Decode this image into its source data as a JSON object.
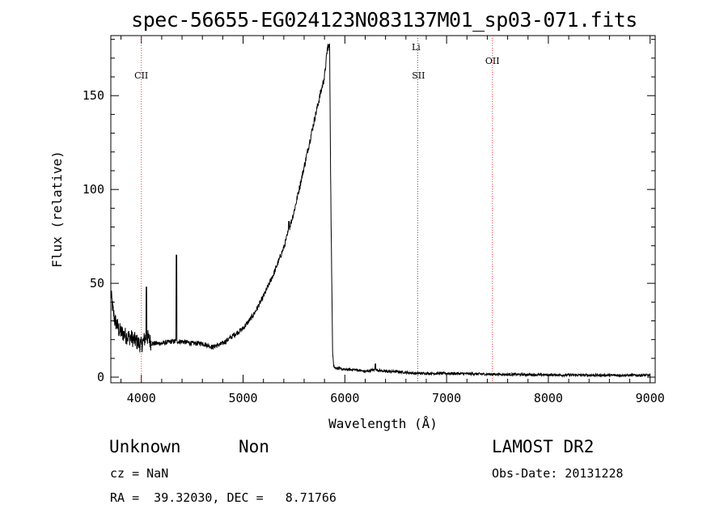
{
  "chart_data": {
    "type": "line",
    "title": "spec-56655-EG024123N083137M01_sp03-071.fits",
    "xlabel": "Wavelength (Å)",
    "ylabel": "Flux (relative)",
    "xlim": [
      3700,
      9050
    ],
    "ylim": [
      -3,
      182
    ],
    "x_ticks": [
      4000,
      5000,
      6000,
      7000,
      8000,
      9000
    ],
    "y_ticks": [
      0,
      50,
      100,
      150
    ],
    "grid": false,
    "line_color": "#000000",
    "series": [
      {
        "x": [
          3700,
          3720,
          3740,
          3760,
          3780,
          3800,
          3850,
          3900,
          3950,
          4000,
          4050,
          4100,
          4200,
          4300,
          4400,
          4500,
          4600,
          4700,
          4800,
          4900,
          5000,
          5100,
          5200,
          5300,
          5400,
          5500,
          5600,
          5700,
          5760,
          5800,
          5830,
          5850,
          5860,
          5870,
          5880,
          5890,
          5900,
          6000,
          6100,
          6200,
          6300,
          6400,
          6500,
          6700,
          7000,
          7500,
          8000,
          8500,
          9000
        ],
        "y": [
          45,
          36,
          30,
          28,
          25,
          24,
          22,
          21,
          19,
          17,
          22,
          18,
          18,
          19,
          19,
          18,
          18,
          16,
          18,
          22,
          26,
          33,
          43,
          55,
          69,
          88,
          112,
          137,
          151,
          160,
          176,
          176,
          110,
          55,
          15,
          7,
          5,
          4,
          4,
          3,
          4,
          3,
          3,
          2,
          2,
          1.5,
          1.2,
          1,
          1
        ]
      }
    ],
    "spikes": [
      {
        "x": 4050,
        "y": 48
      },
      {
        "x": 4345,
        "y": 65
      },
      {
        "x": 5450,
        "y": 83
      },
      {
        "x": 6300,
        "y": 7
      }
    ],
    "line_markers": [
      {
        "label": "CII",
        "x": 4000,
        "color": "#ff3333"
      },
      {
        "label": "SII",
        "x": 6716,
        "color": "#555555"
      },
      {
        "label": "Li",
        "x": 6708,
        "color": "#555555"
      },
      {
        "label": "OII",
        "x": 7450,
        "color": "#ff3333"
      }
    ]
  },
  "info": {
    "classification": "Unknown",
    "subclass": "Non",
    "survey": "LAMOST DR2",
    "cz": "cz = NaN",
    "obs_date": "Obs-Date: 20131228",
    "coords": "RA =  39.32030, DEC =   8.71766"
  }
}
